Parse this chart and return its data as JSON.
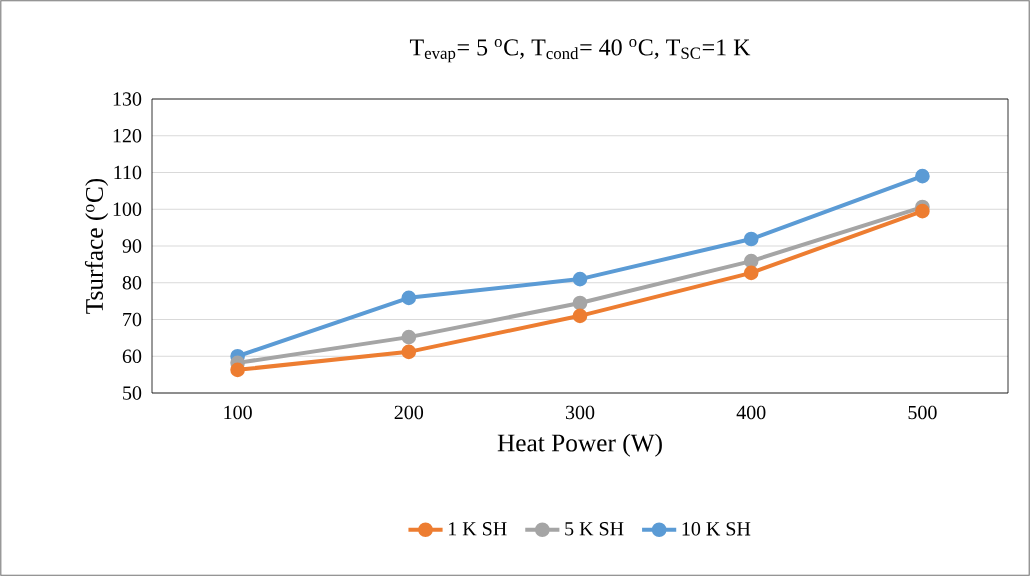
{
  "chart_data": {
    "type": "line",
    "title": "T$_{evap}$= 5 $^{o}$C, T$_{cond}$= 40 $^{o}$C, T$_{SC}$=1 K",
    "xlabel": "Heat Power (W)",
    "ylabel": "Tsurface ($^{o}$C)",
    "categories": [
      "100",
      "200",
      "300",
      "400",
      "500"
    ],
    "series": [
      {
        "name": "1 K SH",
        "color": "#ed7d31",
        "values": [
          56.3,
          61.2,
          71,
          82.7,
          99.5
        ]
      },
      {
        "name": "5 K SH",
        "color": "#a5a5a5",
        "values": [
          58.2,
          65.2,
          74.5,
          85.9,
          100.6
        ]
      },
      {
        "name": "10 K SH",
        "color": "#5b9bd5",
        "values": [
          60,
          75.9,
          81,
          91.9,
          109
        ]
      }
    ],
    "ylim": [
      50,
      130
    ],
    "yticks": [
      50,
      60,
      70,
      80,
      90,
      100,
      110,
      120,
      130
    ],
    "grid": "y",
    "legend": "bottom",
    "marker": "circle",
    "line_style": "solid"
  }
}
